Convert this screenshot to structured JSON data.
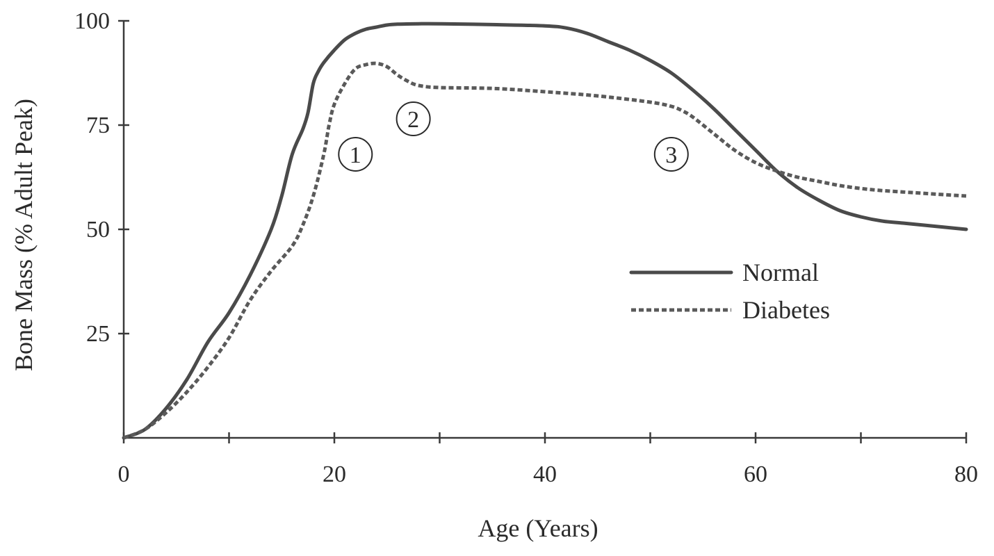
{
  "chart_data": {
    "type": "line",
    "title": "",
    "xlabel": "Age (Years)",
    "ylabel": "Bone Mass (% Adult Peak)",
    "xlim": [
      0,
      80
    ],
    "ylim": [
      0,
      100
    ],
    "x_major_ticks": [
      0,
      20,
      40,
      60,
      80
    ],
    "x_minor_ticks": [
      10,
      30,
      50,
      70
    ],
    "x_tick_labels": [
      "0",
      "20",
      "40",
      "60",
      "80"
    ],
    "y_ticks": [
      25,
      50,
      75,
      100
    ],
    "y_tick_labels": [
      "25",
      "50",
      "75",
      "100"
    ],
    "grid": false,
    "legend_position": "center-right",
    "series": [
      {
        "name": "Normal",
        "style": "solid",
        "color": "#4a4a4a",
        "x": [
          0,
          2,
          4,
          6,
          8,
          10,
          12,
          14,
          15,
          16,
          17,
          17.5,
          18,
          18.5,
          19,
          20,
          21,
          22,
          23,
          24,
          25,
          26,
          28,
          30,
          35,
          40,
          42,
          44,
          46,
          48,
          50,
          52,
          54,
          56,
          58,
          60,
          62,
          64,
          66,
          68,
          70,
          72,
          74,
          76,
          78,
          80
        ],
        "y": [
          0,
          2,
          7,
          14,
          23,
          30,
          39,
          50,
          58,
          68,
          74,
          78,
          85,
          88,
          90,
          93,
          95.5,
          97,
          98,
          98.5,
          99,
          99.2,
          99.3,
          99.3,
          99.1,
          98.8,
          98.3,
          97,
          95,
          93,
          90.5,
          87.5,
          83.5,
          79,
          74,
          69,
          64,
          60,
          57,
          54.5,
          53,
          52,
          51.5,
          51,
          50.5,
          50
        ]
      },
      {
        "name": "Diabetes",
        "style": "dashed",
        "color": "#5a5a5a",
        "x": [
          0,
          2,
          4,
          6,
          8,
          10,
          12,
          14,
          16,
          17,
          18,
          19,
          19.5,
          20,
          21,
          22,
          23,
          24,
          25,
          26,
          27,
          28,
          30,
          35,
          40,
          45,
          50,
          52,
          53,
          54,
          56,
          58,
          60,
          62,
          64,
          66,
          68,
          70,
          72,
          75,
          78,
          80
        ],
        "y": [
          0,
          2,
          6,
          11,
          17,
          24,
          33,
          40,
          46,
          51,
          58,
          68,
          75,
          80,
          85,
          88.5,
          89.5,
          89.8,
          89,
          87,
          85.5,
          84.5,
          84,
          83.8,
          83,
          82,
          80.5,
          79.5,
          78.5,
          77,
          73,
          69,
          66,
          64,
          62.5,
          61.5,
          60.5,
          59.8,
          59.3,
          58.8,
          58.3,
          58
        ]
      }
    ],
    "annotations": [
      {
        "label": "1",
        "x": 22,
        "y": 68
      },
      {
        "label": "2",
        "x": 27.5,
        "y": 76.5
      },
      {
        "label": "3",
        "x": 52,
        "y": 68
      }
    ]
  }
}
